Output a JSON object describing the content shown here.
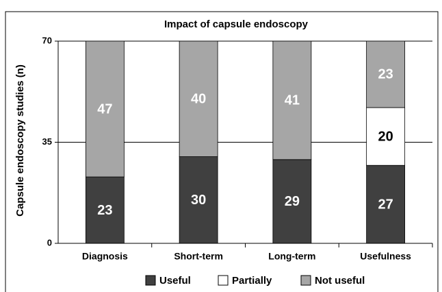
{
  "chart_data": {
    "type": "stacked-bar",
    "title": "Impact of capsule endoscopy",
    "y_label": "Capsule endoscopy studies (n)",
    "categories": [
      "Diagnosis",
      "Short-term",
      "Long-term",
      "Usefulness"
    ],
    "series": [
      {
        "name": "Useful",
        "color": "#404040",
        "label_color": "#ffffff",
        "values": [
          23,
          30,
          29,
          27
        ]
      },
      {
        "name": "Partially",
        "color": "#ffffff",
        "label_color": "#000000",
        "values": [
          null,
          null,
          null,
          20
        ]
      },
      {
        "name": "Not useful",
        "color": "#a6a6a6",
        "label_color": "#ffffff",
        "values": [
          47,
          40,
          41,
          23
        ]
      }
    ],
    "ylim": [
      0,
      70
    ],
    "yticks": [
      0,
      35,
      70
    ],
    "grid": true,
    "legend": "bottom"
  }
}
